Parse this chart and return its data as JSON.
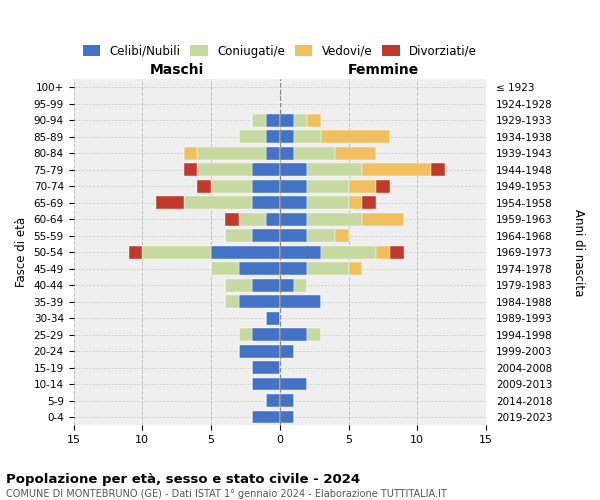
{
  "age_groups": [
    "0-4",
    "5-9",
    "10-14",
    "15-19",
    "20-24",
    "25-29",
    "30-34",
    "35-39",
    "40-44",
    "45-49",
    "50-54",
    "55-59",
    "60-64",
    "65-69",
    "70-74",
    "75-79",
    "80-84",
    "85-89",
    "90-94",
    "95-99",
    "100+"
  ],
  "birth_years": [
    "2019-2023",
    "2014-2018",
    "2009-2013",
    "2004-2008",
    "1999-2003",
    "1994-1998",
    "1989-1993",
    "1984-1988",
    "1979-1983",
    "1974-1978",
    "1969-1973",
    "1964-1968",
    "1959-1963",
    "1954-1958",
    "1949-1953",
    "1944-1948",
    "1939-1943",
    "1934-1938",
    "1929-1933",
    "1924-1928",
    "≤ 1923"
  ],
  "colors": {
    "celibi": "#4472c4",
    "coniugati": "#c5d9a0",
    "vedovi": "#f0c060",
    "divorziati": "#c0392b"
  },
  "maschi": {
    "celibi": [
      2,
      1,
      2,
      2,
      3,
      2,
      1,
      3,
      2,
      3,
      5,
      2,
      1,
      2,
      2,
      2,
      1,
      1,
      1,
      0,
      0
    ],
    "coniugati": [
      0,
      0,
      0,
      0,
      0,
      1,
      0,
      1,
      2,
      2,
      5,
      2,
      2,
      5,
      3,
      4,
      5,
      2,
      1,
      0,
      0
    ],
    "vedovi": [
      0,
      0,
      0,
      0,
      0,
      0,
      0,
      0,
      0,
      0,
      0,
      0,
      0,
      0,
      0,
      0,
      1,
      0,
      0,
      0,
      0
    ],
    "divorziati": [
      0,
      0,
      0,
      0,
      0,
      0,
      0,
      0,
      0,
      0,
      1,
      0,
      1,
      2,
      1,
      1,
      0,
      0,
      0,
      0,
      0
    ]
  },
  "femmine": {
    "celibi": [
      1,
      1,
      2,
      0,
      1,
      2,
      0,
      3,
      1,
      2,
      3,
      2,
      2,
      2,
      2,
      2,
      1,
      1,
      1,
      0,
      0
    ],
    "coniugati": [
      0,
      0,
      0,
      0,
      0,
      1,
      0,
      0,
      1,
      3,
      4,
      2,
      4,
      3,
      3,
      4,
      3,
      2,
      1,
      0,
      0
    ],
    "vedovi": [
      0,
      0,
      0,
      0,
      0,
      0,
      0,
      0,
      0,
      1,
      1,
      1,
      3,
      1,
      2,
      5,
      3,
      5,
      1,
      0,
      0
    ],
    "divorziati": [
      0,
      0,
      0,
      0,
      0,
      0,
      0,
      0,
      0,
      0,
      1,
      0,
      0,
      1,
      1,
      1,
      0,
      0,
      0,
      0,
      0
    ]
  },
  "title": "Popolazione per età, sesso e stato civile - 2024",
  "subtitle": "COMUNE DI MONTEBRUNO (GE) - Dati ISTAT 1° gennaio 2024 - Elaborazione TUTTITALIA.IT",
  "xlabel_left": "Maschi",
  "xlabel_right": "Femmine",
  "ylabel_left": "Fasce di età",
  "ylabel_right": "Anni di nascita",
  "xlim": 15,
  "legend_labels": [
    "Celibi/Nubili",
    "Coniugati/e",
    "Vedovi/e",
    "Divorziati/e"
  ],
  "plot_bg": "#efefef",
  "fig_bg": "#ffffff"
}
